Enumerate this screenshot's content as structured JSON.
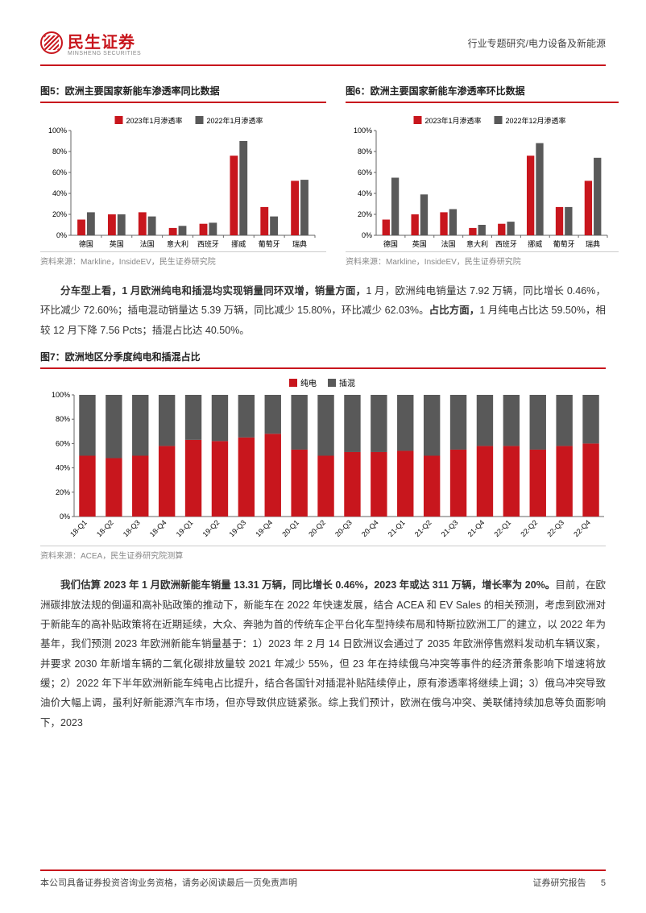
{
  "header": {
    "brand_cn": "民生证券",
    "brand_en": "MINSHENG SECURITIES",
    "right": "行业专题研究/电力设备及新能源"
  },
  "fig5": {
    "title": "图5：欧洲主要国家新能车渗透率同比数据",
    "source": "资料来源：Markline，InsideEV，民生证券研究院",
    "legend": [
      "2023年1月渗透率",
      "2022年1月渗透率"
    ],
    "colors": [
      "#c8161d",
      "#595959"
    ],
    "categories": [
      "德国",
      "英国",
      "法国",
      "意大利",
      "西班牙",
      "挪威",
      "葡萄牙",
      "瑞典"
    ],
    "series": [
      [
        15,
        20,
        22,
        7,
        11,
        76,
        27,
        52
      ],
      [
        22,
        20,
        18,
        9,
        12,
        90,
        18,
        53
      ]
    ],
    "ylim": [
      0,
      100
    ],
    "ytick_step": 20,
    "ysuffix": "%",
    "bg": "#ffffff",
    "axis_color": "#666",
    "font_size": 9
  },
  "fig6": {
    "title": "图6：欧洲主要国家新能车渗透率环比数据",
    "source": "资料来源：Markline，InsideEV，民生证券研究院",
    "legend": [
      "2023年1月渗透率",
      "2022年12月渗透率"
    ],
    "colors": [
      "#c8161d",
      "#595959"
    ],
    "categories": [
      "德国",
      "英国",
      "法国",
      "意大利",
      "西班牙",
      "挪威",
      "葡萄牙",
      "瑞典"
    ],
    "series": [
      [
        15,
        20,
        22,
        7,
        11,
        76,
        27,
        52
      ],
      [
        55,
        39,
        25,
        10,
        13,
        88,
        27,
        74
      ]
    ],
    "ylim": [
      0,
      100
    ],
    "ytick_step": 20,
    "ysuffix": "%",
    "bg": "#ffffff",
    "axis_color": "#666",
    "font_size": 9
  },
  "para1": "<b>分车型上看，1 月欧洲纯电和插混均实现销量同环双增，销量方面，</b>1 月，欧洲纯电销量达 7.92 万辆，同比增长 0.46%，环比减少 72.60%；插电混动销量达 5.39 万辆，同比减少 15.80%，环比减少 62.03%。<b>占比方面，</b>1 月纯电占比达 59.50%，相较 12 月下降 7.56 Pcts；插混占比达 40.50%。",
  "fig7": {
    "title": "图7：欧洲地区分季度纯电和插混占比",
    "source": "资料来源：ACEA，民生证券研究院测算",
    "legend": [
      "纯电",
      "插混"
    ],
    "colors": [
      "#c8161d",
      "#595959"
    ],
    "categories": [
      "18-Q1",
      "18-Q2",
      "18-Q3",
      "18-Q4",
      "19-Q1",
      "19-Q2",
      "19-Q3",
      "19-Q4",
      "20-Q1",
      "20-Q2",
      "20-Q3",
      "20-Q4",
      "21-Q1",
      "21-Q2",
      "21-Q3",
      "21-Q4",
      "22-Q1",
      "22-Q2",
      "22-Q3",
      "22-Q4"
    ],
    "ev_share": [
      50,
      48,
      50,
      58,
      63,
      62,
      65,
      68,
      55,
      50,
      53,
      53,
      54,
      50,
      55,
      58,
      58,
      55,
      58,
      60
    ],
    "ylim": [
      0,
      100
    ],
    "ytick_step": 20,
    "ysuffix": "%",
    "bg": "#ffffff",
    "axis_color": "#666",
    "font_size": 9
  },
  "para2": "<b>我们估算 2023 年 1 月欧洲新能车销量 13.31 万辆，同比增长 0.46%，2023 年或达 311 万辆，增长率为 20%。</b>目前，在欧洲碳排放法规的倒逼和高补贴政策的推动下，新能车在 2022 年快速发展，结合 ACEA 和 EV Sales 的相关预测，考虑到欧洲对于新能车的高补贴政策将在近期延续，大众、奔驰为首的传统车企平台化车型持续布局和特斯拉欧洲工厂的建立，以 2022 年为基年，我们预测 2023 年欧洲新能车销量基于：1）2023 年 2 月 14 日欧洲议会通过了 2035 年欧洲停售燃料发动机车辆议案，并要求 2030 年新增车辆的二氧化碳排放量较 2021 年减少 55%，但 23 年在持续俄乌冲突等事件的经济萧条影响下增速将放缓；2）2022 年下半年欧洲新能车纯电占比提升，结合各国针对插混补贴陆续停止，原有渗透率将继续上调；3）俄乌冲突导致油价大幅上调，虽利好新能源汽车市场，但亦导致供应链紧张。综上我们预计，欧洲在俄乌冲突、美联储持续加息等负面影响下，2023",
  "footer": {
    "left": "本公司具备证券投资咨询业务资格，请务必阅读最后一页免责声明",
    "right_label": "证券研究报告",
    "page": "5"
  }
}
